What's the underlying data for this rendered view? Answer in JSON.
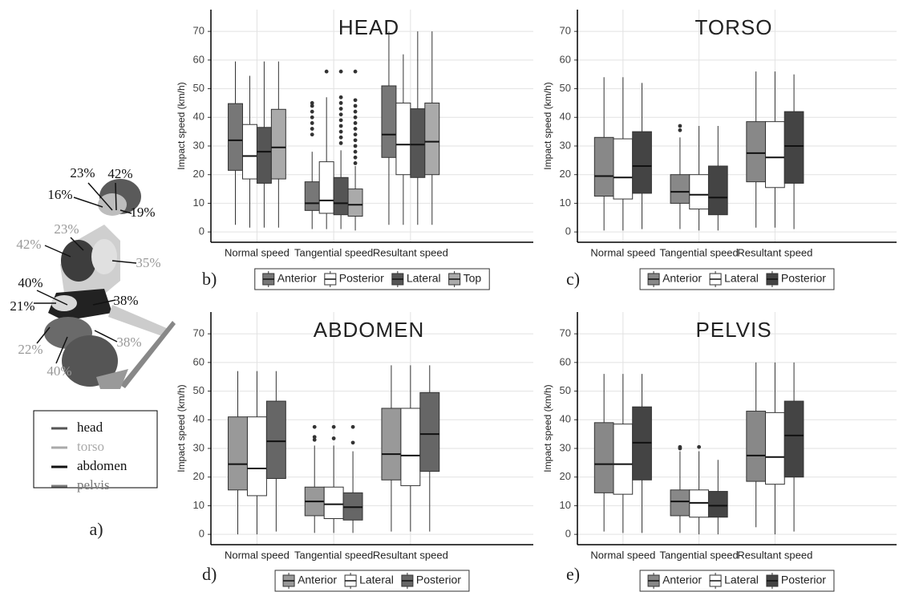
{
  "panel_a": {
    "label": "a)",
    "annotations": [
      "23%",
      "42%",
      "16%",
      "19%",
      "23%",
      "42%",
      "35%",
      "40%",
      "21%",
      "38%",
      "38%",
      "22%",
      "40%"
    ],
    "legend": [
      {
        "name": "head",
        "color": "#555555"
      },
      {
        "name": "torso",
        "color": "#aaaaaa"
      },
      {
        "name": "abdomen",
        "color": "#111111"
      },
      {
        "name": "pelvis",
        "color": "#777777"
      }
    ]
  },
  "chart_data": [
    {
      "type": "box",
      "title": "HEAD",
      "panel_label": "b)",
      "ylabel": "Impact speed (km/h)",
      "categories": [
        "Normal speed",
        "Tangential speed",
        "Resultant speed"
      ],
      "series": [
        {
          "name": "Anterior",
          "color": "#777777",
          "min": [
            2.5,
            1,
            2.5
          ],
          "q1": [
            21.5,
            7.5,
            26
          ],
          "median": [
            32,
            10,
            34
          ],
          "q3": [
            44.8,
            17.5,
            51
          ],
          "max": [
            59.5,
            28,
            70
          ],
          "outliers": [
            [],
            [
              34,
              36,
              38,
              40,
              42,
              44,
              45
            ],
            []
          ]
        },
        {
          "name": "Posterior",
          "color": "#ffffff",
          "min": [
            1.5,
            1,
            2.5
          ],
          "q1": [
            18.5,
            6.5,
            20
          ],
          "median": [
            26.5,
            11,
            30.5
          ],
          "q3": [
            37.5,
            24.5,
            45
          ],
          "max": [
            54.5,
            47,
            62
          ],
          "outliers": [
            [],
            [
              56
            ],
            []
          ]
        },
        {
          "name": "Lateral",
          "color": "#555555",
          "min": [
            1.5,
            1,
            2.5
          ],
          "q1": [
            17,
            6,
            19
          ],
          "median": [
            28,
            10,
            30.5
          ],
          "q3": [
            36.5,
            19,
            43
          ],
          "max": [
            59.5,
            28.5,
            70
          ],
          "outliers": [
            [],
            [
              31,
              33,
              35,
              37,
              39,
              41,
              43,
              45,
              47,
              56
            ],
            []
          ]
        },
        {
          "name": "Top",
          "color": "#aaaaaa",
          "min": [
            1.5,
            0.5,
            2.5
          ],
          "q1": [
            18.5,
            5.5,
            20
          ],
          "median": [
            29.5,
            9.5,
            31.5
          ],
          "q3": [
            42.8,
            15,
            45
          ],
          "max": [
            59.5,
            23,
            70
          ],
          "outliers": [
            [],
            [
              24,
              26,
              28,
              30,
              32,
              34,
              36,
              38,
              40,
              42,
              44,
              46,
              56
            ],
            []
          ]
        }
      ],
      "ylim": [
        -3.6,
        77.6
      ],
      "yticks": [
        0,
        10,
        20,
        30,
        40,
        50,
        60,
        70
      ],
      "grid": true,
      "legend": "bottom"
    },
    {
      "type": "box",
      "title": "TORSO",
      "panel_label": "c)",
      "ylabel": "Impact speed (km/h)",
      "categories": [
        "Normal speed",
        "Tangential speed",
        "Resultant speed"
      ],
      "series": [
        {
          "name": "Anterior",
          "color": "#888888",
          "min": [
            0.5,
            1,
            1.5
          ],
          "q1": [
            12.5,
            10,
            17.5
          ],
          "median": [
            19.5,
            14,
            27.5
          ],
          "q3": [
            33,
            20,
            38.5
          ],
          "max": [
            54,
            33,
            56
          ],
          "outliers": [
            [],
            [
              35.5,
              37
            ],
            []
          ]
        },
        {
          "name": "Lateral",
          "color": "#ffffff",
          "min": [
            0.5,
            0.5,
            1.5
          ],
          "q1": [
            11.5,
            8,
            15.5
          ],
          "median": [
            19,
            13,
            26
          ],
          "q3": [
            32.5,
            20,
            38.5
          ],
          "max": [
            54,
            37,
            56
          ],
          "outliers": [
            [],
            [],
            []
          ]
        },
        {
          "name": "Posterior",
          "color": "#444444",
          "min": [
            1,
            0.5,
            1
          ],
          "q1": [
            13.5,
            6,
            17
          ],
          "median": [
            23,
            12,
            30
          ],
          "q3": [
            35,
            23,
            42
          ],
          "max": [
            52,
            37,
            55
          ],
          "outliers": [
            [],
            [],
            []
          ]
        }
      ],
      "ylim": [
        -3.6,
        77.6
      ],
      "yticks": [
        0,
        10,
        20,
        30,
        40,
        50,
        60,
        70
      ],
      "grid": true,
      "legend": "bottom"
    },
    {
      "type": "box",
      "title": "ABDOMEN",
      "panel_label": "d)",
      "ylabel": "Impact speed (km/h)",
      "categories": [
        "Normal speed",
        "Tangential speed",
        "Resultant speed"
      ],
      "series": [
        {
          "name": "Anterior",
          "color": "#999999",
          "min": [
            0,
            0.5,
            1
          ],
          "q1": [
            15.5,
            6.5,
            19
          ],
          "median": [
            24.5,
            11.5,
            28
          ],
          "q3": [
            41,
            16.5,
            44
          ],
          "max": [
            57,
            31,
            59
          ],
          "outliers": [
            [],
            [
              33,
              34,
              37.5
            ],
            []
          ]
        },
        {
          "name": "Lateral",
          "color": "#ffffff",
          "min": [
            0,
            0.5,
            1
          ],
          "q1": [
            13.5,
            5.5,
            17
          ],
          "median": [
            23,
            10.5,
            27.5
          ],
          "q3": [
            41,
            16.5,
            44
          ],
          "max": [
            57,
            31,
            59
          ],
          "outliers": [
            [],
            [
              33.5,
              37.5
            ],
            []
          ]
        },
        {
          "name": "Posterior",
          "color": "#666666",
          "min": [
            1,
            0.5,
            1
          ],
          "q1": [
            19.5,
            5,
            22
          ],
          "median": [
            32.5,
            9.5,
            35
          ],
          "q3": [
            46.5,
            14.5,
            49.5
          ],
          "max": [
            57,
            29,
            59
          ],
          "outliers": [
            [],
            [
              32,
              37.5
            ],
            []
          ]
        }
      ],
      "ylim": [
        -3.6,
        77.6
      ],
      "yticks": [
        0,
        10,
        20,
        30,
        40,
        50,
        60,
        70
      ],
      "grid": true,
      "legend": "bottom"
    },
    {
      "type": "box",
      "title": "PELVIS",
      "panel_label": "e)",
      "ylabel": "Impact speed (km/h)",
      "categories": [
        "Normal speed",
        "Tangential speed",
        "Resultant speed"
      ],
      "series": [
        {
          "name": "Anterior",
          "color": "#888888",
          "min": [
            1,
            0.5,
            2.5
          ],
          "q1": [
            14.5,
            6.5,
            18.5
          ],
          "median": [
            24.5,
            11.5,
            27.5
          ],
          "q3": [
            39,
            15.5,
            43
          ],
          "max": [
            56,
            29,
            60
          ],
          "outliers": [
            [],
            [
              30,
              30.5
            ],
            []
          ]
        },
        {
          "name": "Lateral",
          "color": "#ffffff",
          "min": [
            0.5,
            0,
            0
          ],
          "q1": [
            14,
            6,
            17.5
          ],
          "median": [
            24.5,
            11,
            27
          ],
          "q3": [
            38.5,
            15.5,
            42.5
          ],
          "max": [
            56,
            29,
            60
          ],
          "outliers": [
            [],
            [
              30.5
            ],
            []
          ]
        },
        {
          "name": "Posterior",
          "color": "#444444",
          "min": [
            0.5,
            0,
            1
          ],
          "q1": [
            19,
            6,
            20
          ],
          "median": [
            32,
            10,
            34.5
          ],
          "q3": [
            44.5,
            15,
            46.5
          ],
          "max": [
            56,
            26,
            60
          ],
          "outliers": [
            [],
            [],
            []
          ]
        }
      ],
      "ylim": [
        -3.6,
        77.6
      ],
      "yticks": [
        0,
        10,
        20,
        30,
        40,
        50,
        60,
        70
      ],
      "grid": true,
      "legend": "bottom"
    }
  ]
}
